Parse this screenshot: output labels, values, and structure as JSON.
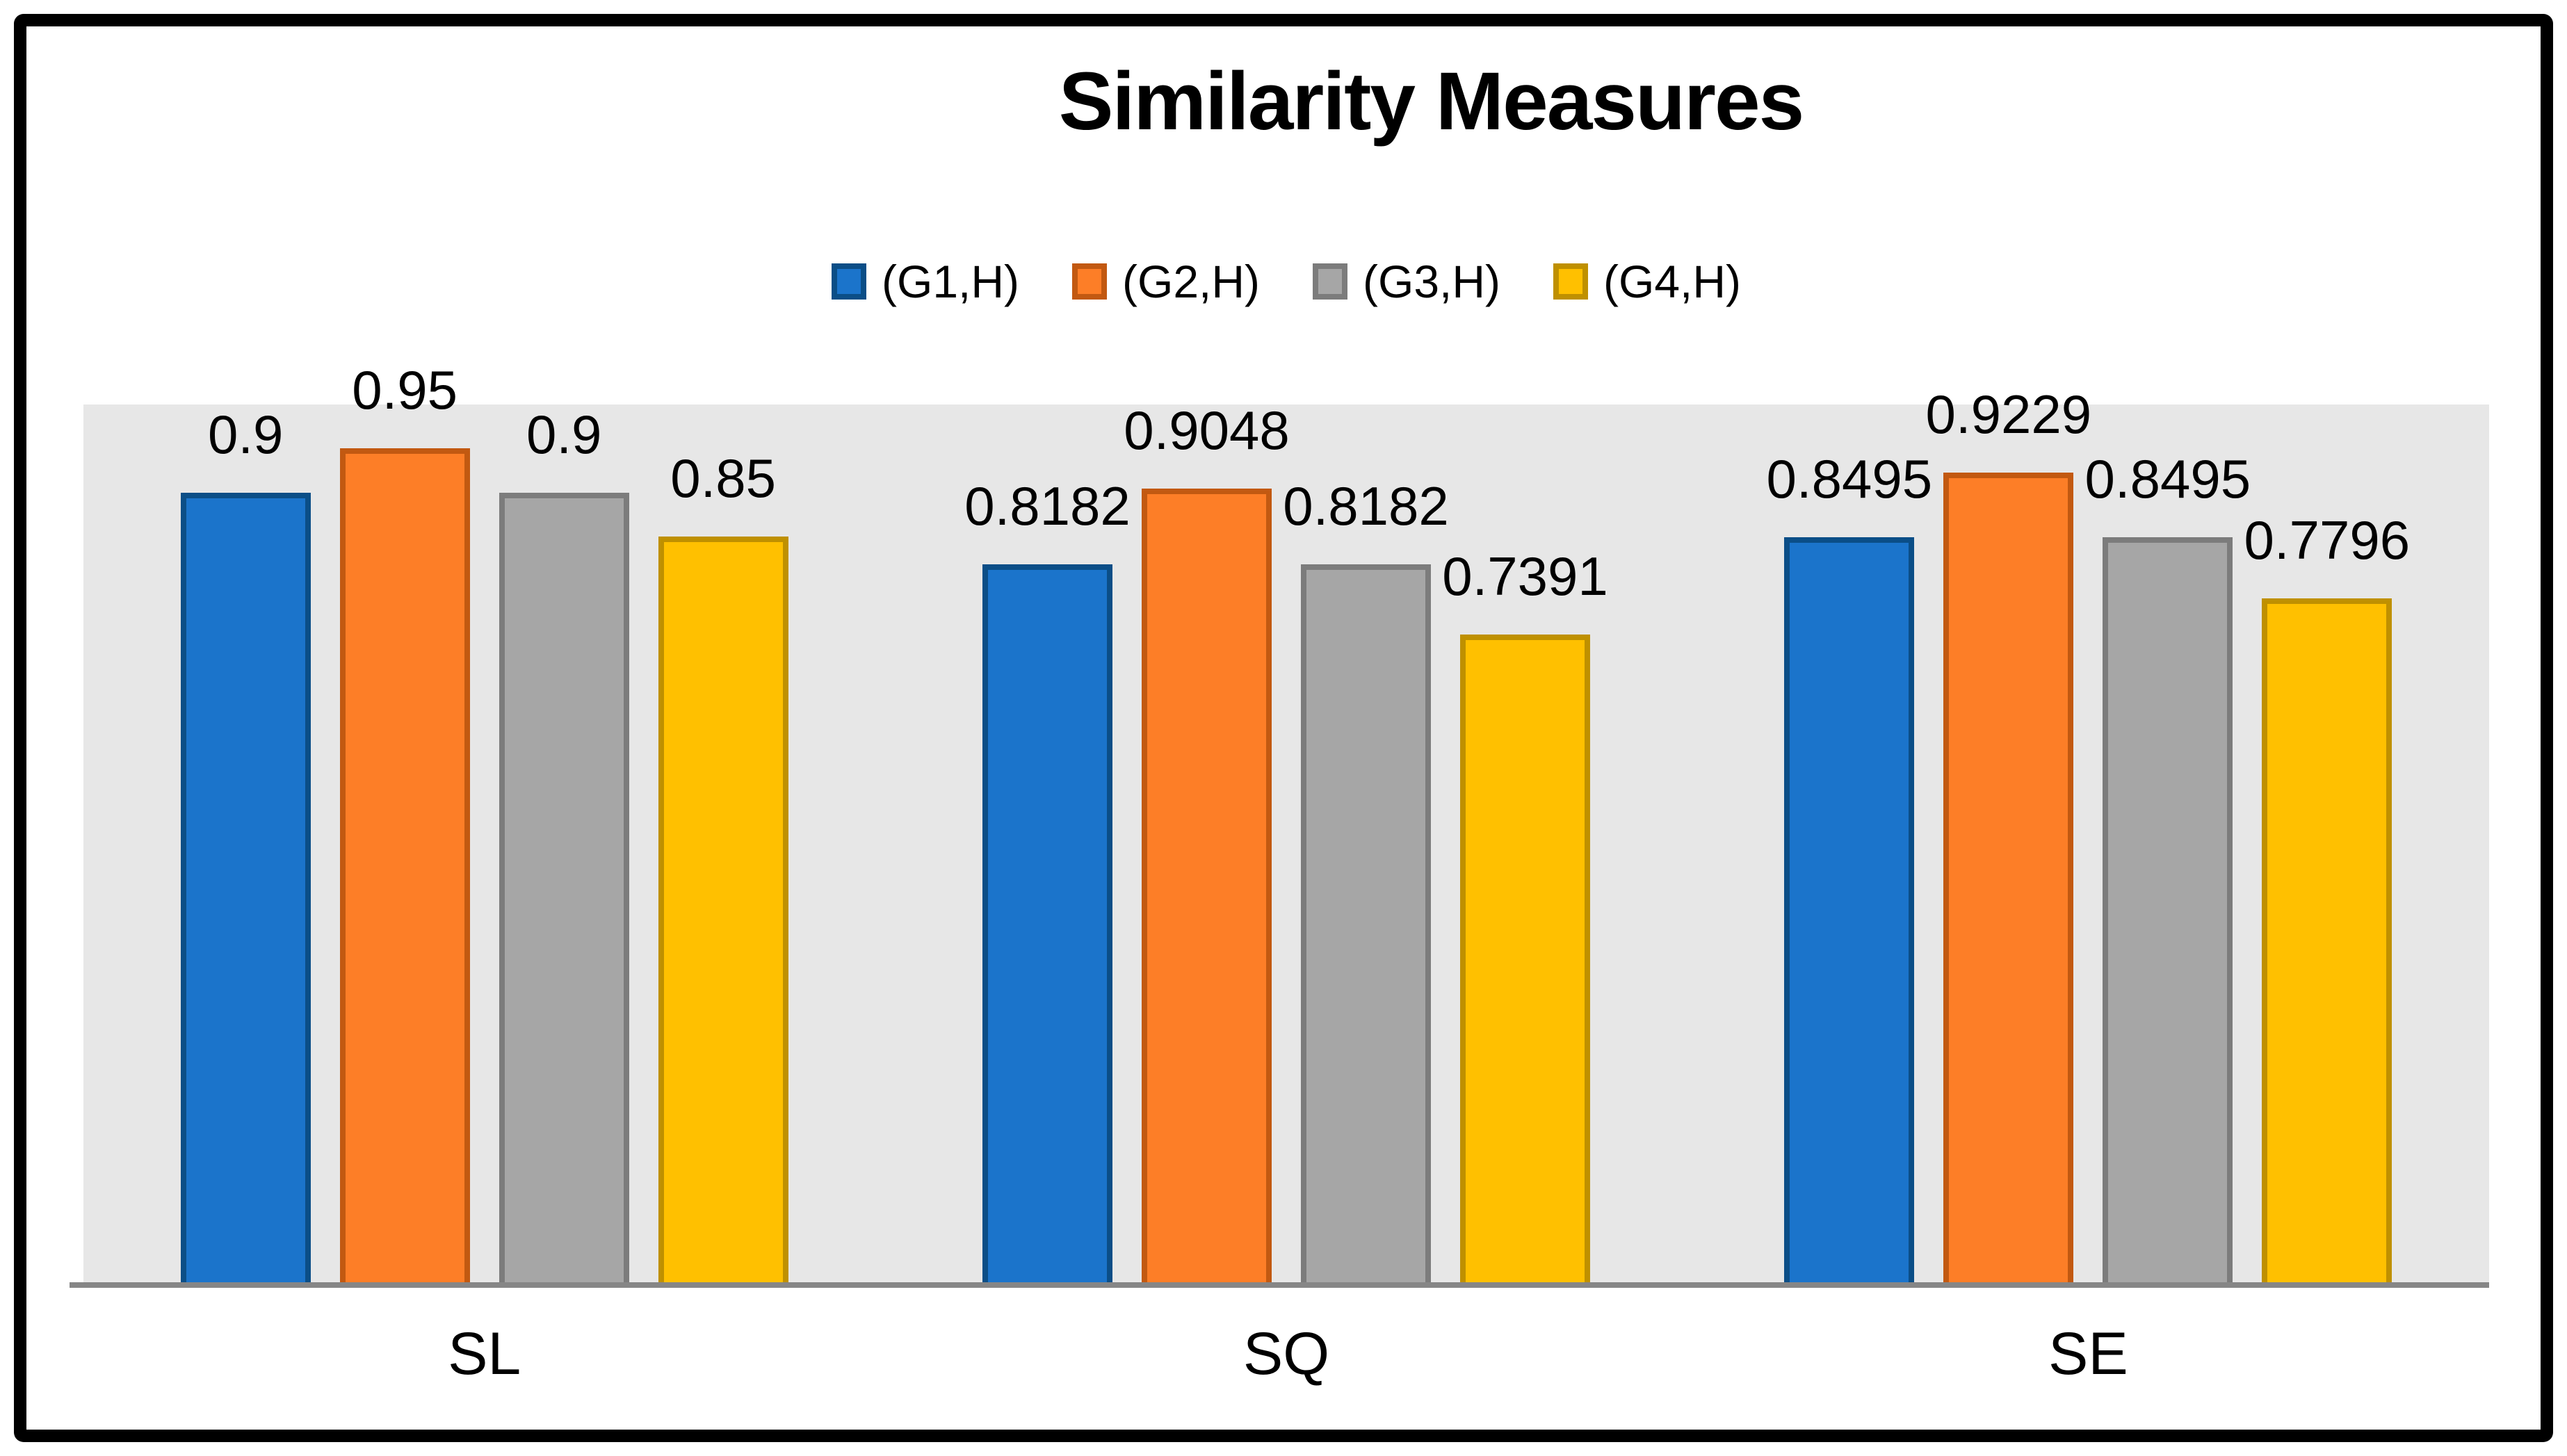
{
  "title": "Similarity Measures",
  "colors": {
    "plot_background": "#E7E7E7",
    "axis_line": "#868686",
    "text": "#000000",
    "frame_border": "#000000"
  },
  "chart_data": {
    "type": "bar",
    "title": "Similarity Measures",
    "categories": [
      "SL",
      "SQ",
      "SE"
    ],
    "series": [
      {
        "name": "(G1,H)",
        "fill": "#1B74CB",
        "stroke": "#0B4E87",
        "values": [
          0.9,
          0.8182,
          0.8495
        ]
      },
      {
        "name": "(G2,H)",
        "fill": "#FD7E27",
        "stroke": "#C25911",
        "values": [
          0.95,
          0.9048,
          0.9229
        ]
      },
      {
        "name": "(G3,H)",
        "fill": "#A6A6A6",
        "stroke": "#7C7C7C",
        "values": [
          0.9,
          0.8182,
          0.8495
        ]
      },
      {
        "name": "(G4,H)",
        "fill": "#FFC000",
        "stroke": "#BF9000",
        "values": [
          0.85,
          0.7391,
          0.7796
        ]
      }
    ],
    "data_labels": [
      [
        "0.9",
        "0.95",
        "0.9",
        "0.85"
      ],
      [
        "0.8182",
        "0.9048",
        "0.8182",
        "0.7391"
      ],
      [
        "0.8495",
        "0.9229",
        "0.8495",
        "0.7796"
      ]
    ],
    "xlabel": "",
    "ylabel": "",
    "ylim": [
      0,
      1
    ],
    "grid": false,
    "y_axis_ticks_visible": false,
    "legend_position": "top"
  }
}
